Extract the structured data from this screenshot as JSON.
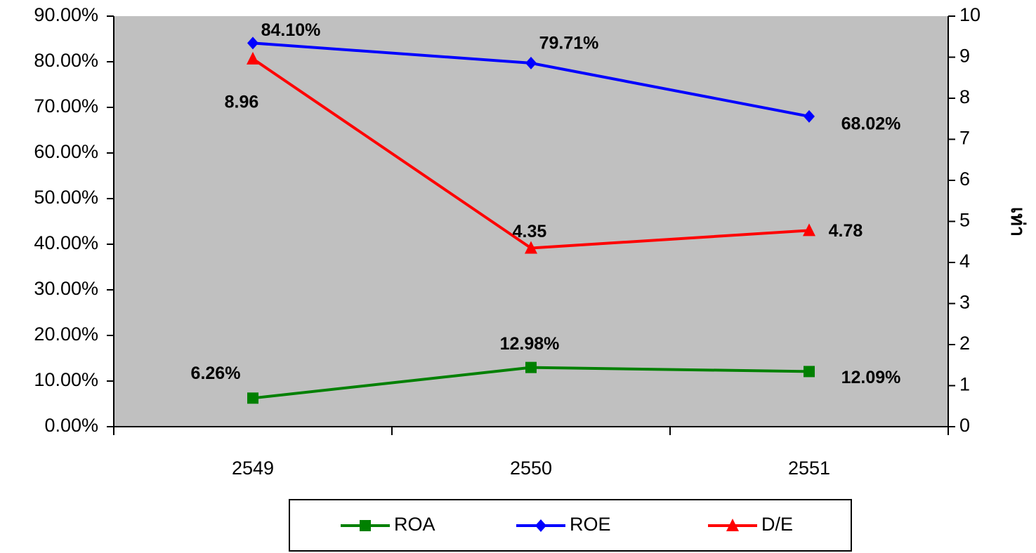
{
  "chart_data": {
    "type": "line",
    "title": "",
    "xlabel": "",
    "ylabel": "",
    "y2label": "เท่า",
    "categories": [
      "2549",
      "2550",
      "2551"
    ],
    "ylim": [
      0,
      90
    ],
    "yticks": [
      "0.00%",
      "10.00%",
      "20.00%",
      "30.00%",
      "40.00%",
      "50.00%",
      "60.00%",
      "70.00%",
      "80.00%",
      "90.00%"
    ],
    "y2lim": [
      0,
      10
    ],
    "y2ticks": [
      "0",
      "1",
      "2",
      "3",
      "4",
      "5",
      "6",
      "7",
      "8",
      "9",
      "10"
    ],
    "plot_background": "#c0c0c0",
    "grid": false,
    "legend_position": "bottom",
    "series": [
      {
        "name": "ROA",
        "axis": "left",
        "color": "#008000",
        "marker": "square",
        "values": [
          6.26,
          12.98,
          12.09
        ],
        "labels": [
          "6.26%",
          "12.98%",
          "12.09%"
        ]
      },
      {
        "name": "ROE",
        "axis": "left",
        "color": "#0000ff",
        "marker": "diamond",
        "values": [
          84.1,
          79.71,
          68.02
        ],
        "labels": [
          "84.10%",
          "79.71%",
          "68.02%"
        ]
      },
      {
        "name": "D/E",
        "axis": "right",
        "color": "#ff0000",
        "marker": "triangle",
        "values": [
          8.96,
          4.35,
          4.78
        ],
        "labels": [
          "8.96",
          "4.35",
          "4.78"
        ]
      }
    ]
  }
}
